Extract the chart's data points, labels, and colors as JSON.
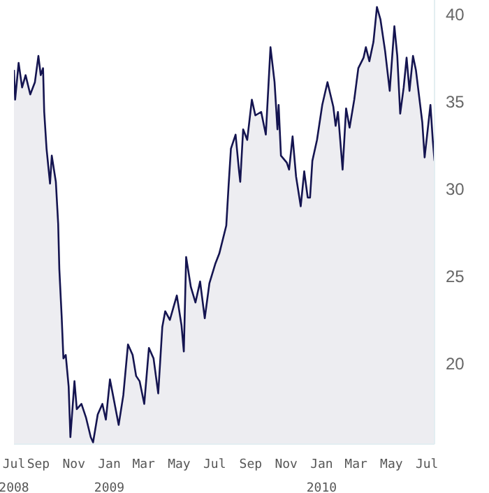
{
  "chart_data": {
    "type": "area",
    "x": [
      "2008-07-21",
      "2008-07-23",
      "2008-07-29",
      "2008-08-04",
      "2008-08-10",
      "2008-08-18",
      "2008-08-26",
      "2008-09-01",
      "2008-09-05",
      "2008-09-09",
      "2008-09-11",
      "2008-09-15",
      "2008-09-21",
      "2008-09-24",
      "2008-10-01",
      "2008-10-05",
      "2008-10-07",
      "2008-10-11",
      "2008-10-14",
      "2008-10-18",
      "2008-10-23",
      "2008-10-26",
      "2008-11-02",
      "2008-11-06",
      "2008-11-14",
      "2008-11-22",
      "2008-11-30",
      "2008-12-04",
      "2008-12-12",
      "2008-12-20",
      "2008-12-26",
      "2009-01-02",
      "2009-01-09",
      "2009-01-17",
      "2009-01-25",
      "2009-02-02",
      "2009-02-10",
      "2009-02-16",
      "2009-02-22",
      "2009-03-02",
      "2009-03-10",
      "2009-03-18",
      "2009-03-26",
      "2009-04-02",
      "2009-04-07",
      "2009-04-15",
      "2009-04-27",
      "2009-05-05",
      "2009-05-09",
      "2009-05-13",
      "2009-05-21",
      "2009-05-29",
      "2009-06-06",
      "2009-06-14",
      "2009-06-22",
      "2009-07-02",
      "2009-07-09",
      "2009-07-21",
      "2009-07-25",
      "2009-07-29",
      "2009-08-06",
      "2009-08-12",
      "2009-08-14",
      "2009-08-19",
      "2009-08-26",
      "2009-09-03",
      "2009-09-09",
      "2009-09-19",
      "2009-09-27",
      "2009-10-05",
      "2009-10-12",
      "2009-10-17",
      "2009-10-19",
      "2009-10-23",
      "2009-11-02",
      "2009-11-06",
      "2009-11-12",
      "2009-11-18",
      "2009-11-26",
      "2009-12-02",
      "2009-12-08",
      "2009-12-12",
      "2009-12-16",
      "2009-12-24",
      "2010-01-02",
      "2010-01-11",
      "2010-01-21",
      "2010-01-25",
      "2010-01-29",
      "2010-02-06",
      "2010-02-12",
      "2010-02-18",
      "2010-02-26",
      "2010-03-05",
      "2010-03-14",
      "2010-03-18",
      "2010-03-24",
      "2010-03-31",
      "2010-04-06",
      "2010-04-12",
      "2010-04-20",
      "2010-04-28",
      "2010-05-06",
      "2010-05-11",
      "2010-05-16",
      "2010-05-22",
      "2010-05-27",
      "2010-06-01",
      "2010-06-07",
      "2010-06-12",
      "2010-06-23",
      "2010-06-27",
      "2010-07-07",
      "2010-07-11",
      "2010-07-14"
    ],
    "series": [
      {
        "color": "#141450",
        "values": [
          36.8,
          35.1,
          37.2,
          35.8,
          36.5,
          35.4,
          36.1,
          37.6,
          36.5,
          36.9,
          34.4,
          32.3,
          30.3,
          31.9,
          30.4,
          28.0,
          25.4,
          22.7,
          20.3,
          20.5,
          18.7,
          15.8,
          19.0,
          17.4,
          17.7,
          16.9,
          15.8,
          15.5,
          17.1,
          17.7,
          16.8,
          19.1,
          17.9,
          16.5,
          18.2,
          21.1,
          20.5,
          19.3,
          19.0,
          17.7,
          20.9,
          20.3,
          18.3,
          22.1,
          23.0,
          22.5,
          23.9,
          22.2,
          20.7,
          26.1,
          24.4,
          23.5,
          24.7,
          22.6,
          24.6,
          25.7,
          26.3,
          27.9,
          30.2,
          32.3,
          33.1,
          31.0,
          30.4,
          33.4,
          32.8,
          35.1,
          34.2,
          34.4,
          33.1,
          38.1,
          36.1,
          33.4,
          34.8,
          31.9,
          31.5,
          31.1,
          33.0,
          30.7,
          29.0,
          31.0,
          29.5,
          29.5,
          31.6,
          32.8,
          34.8,
          36.1,
          34.7,
          33.6,
          34.4,
          31.1,
          34.6,
          33.5,
          35.1,
          36.9,
          37.5,
          38.1,
          37.3,
          38.4,
          40.4,
          39.7,
          37.9,
          35.6,
          39.3,
          37.6,
          34.3,
          35.8,
          37.5,
          35.6,
          37.6,
          36.8,
          33.8,
          31.8,
          34.8,
          32.8,
          31.6
        ]
      }
    ],
    "xlim": [
      "2008-07-21",
      "2010-07-14"
    ],
    "xticks": [
      {
        "value": "2008-07-21",
        "label": "Jul 2008"
      },
      {
        "value": "2008-09-01",
        "label": "Sep"
      },
      {
        "value": "2008-11-01",
        "label": "Nov"
      },
      {
        "value": "2009-01-01",
        "label": "Jan 2009"
      },
      {
        "value": "2009-03-01",
        "label": "Mar"
      },
      {
        "value": "2009-05-01",
        "label": "May"
      },
      {
        "value": "2009-07-01",
        "label": "Jul"
      },
      {
        "value": "2009-09-01",
        "label": "Sep"
      },
      {
        "value": "2009-11-01",
        "label": "Nov"
      },
      {
        "value": "2010-01-01",
        "label": "Jan 2010"
      },
      {
        "value": "2010-03-01",
        "label": "Mar"
      },
      {
        "value": "2010-05-01",
        "label": "May"
      },
      {
        "value": "2010-07-01",
        "label": "Jul"
      }
    ],
    "ylim": [
      15.4,
      40.8
    ],
    "yticks": [
      20,
      25,
      30,
      35,
      40
    ],
    "grid": false,
    "legend": false
  }
}
